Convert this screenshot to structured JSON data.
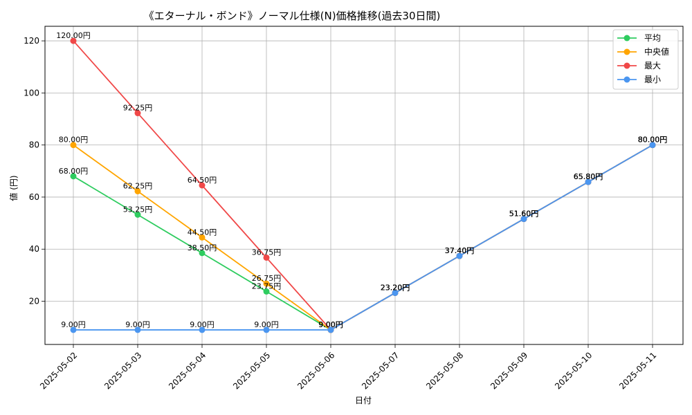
{
  "chart_data": {
    "type": "line",
    "title": "《エターナル・ボンド》ノーマル仕様(N)価格推移(過去30日間)",
    "xlabel": "日付",
    "ylabel": "値 (円)",
    "x": [
      "2025-05-02",
      "2025-05-03",
      "2025-05-04",
      "2025-05-05",
      "2025-05-06",
      "2025-05-07",
      "2025-05-08",
      "2025-05-09",
      "2025-05-10",
      "2025-05-11"
    ],
    "ylim": [
      3.4,
      125.6
    ],
    "yticks": [
      20,
      40,
      60,
      80,
      100,
      120
    ],
    "grid": true,
    "legend_position": "top-right",
    "value_suffix": "円",
    "series": [
      {
        "name": "平均",
        "color": "#2ecc5f",
        "values": [
          68.0,
          53.25,
          38.5,
          23.75,
          9.0,
          23.2,
          37.4,
          51.6,
          65.8,
          80.0
        ]
      },
      {
        "name": "中央値",
        "color": "#ffa500",
        "values": [
          80.0,
          62.25,
          44.5,
          26.75,
          9.0,
          23.2,
          37.4,
          51.6,
          65.8,
          80.0
        ]
      },
      {
        "name": "最大",
        "color": "#f04848",
        "values": [
          120.0,
          92.25,
          64.5,
          36.75,
          9.0,
          23.2,
          37.4,
          51.6,
          65.8,
          80.0
        ]
      },
      {
        "name": "最小",
        "color": "#4b96f0",
        "values": [
          9.0,
          9.0,
          9.0,
          9.0,
          9.0,
          23.2,
          37.4,
          51.6,
          65.8,
          80.0
        ]
      }
    ]
  }
}
